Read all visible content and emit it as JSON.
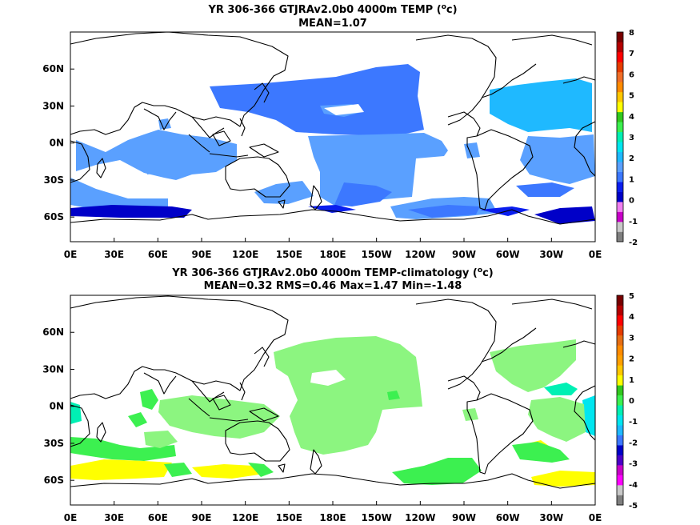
{
  "chart_data": [
    {
      "type": "heatmap",
      "title": "YR 306-366 GTJRAv2.0b0 4000m TEMP (",
      "title_unit_sup": "o",
      "title_unit_tail": "c)",
      "subtitle": "MEAN=1.07",
      "xticks": [
        "0E",
        "30E",
        "60E",
        "90E",
        "120E",
        "150E",
        "180E",
        "150W",
        "120W",
        "90W",
        "60W",
        "30W",
        "0E"
      ],
      "xtick_lon": [
        0,
        30,
        60,
        90,
        120,
        150,
        180,
        210,
        240,
        270,
        300,
        330,
        360
      ],
      "yticks": [
        "60N",
        "30N",
        "0N",
        "30S",
        "60S"
      ],
      "ytick_lat": [
        60,
        30,
        0,
        -30,
        -60
      ],
      "xlim": [
        0,
        360
      ],
      "ylim": [
        -80,
        90
      ],
      "colorbar": {
        "levels": [
          "-2",
          "-1",
          "0",
          "1",
          "2",
          "3",
          "4",
          "5",
          "6",
          "7",
          "8"
        ],
        "colors": [
          "#7f7f7f",
          "#c8c8c8",
          "#c800c8",
          "#f080f0",
          "#0000c8",
          "#0a1eee",
          "#3c78ff",
          "#5aa0ff",
          "#1fb9ff",
          "#00e6f0",
          "#00f0b4",
          "#3cf050",
          "#32c81e",
          "#ffff00",
          "#ffc800",
          "#ff8c00",
          "#f06e28",
          "#e63c00",
          "#ff0000",
          "#b40000",
          "#780000"
        ]
      }
    },
    {
      "type": "heatmap",
      "title": "YR 306-366 GTJRAv2.0b0 4000m TEMP-climatology (",
      "title_unit_sup": "o",
      "title_unit_tail": "c)",
      "subtitle": "MEAN=0.32   RMS=0.46   Max=1.47   Min=-1.48",
      "xticks": [
        "0E",
        "30E",
        "60E",
        "90E",
        "120E",
        "150E",
        "180E",
        "150W",
        "120W",
        "90W",
        "60W",
        "30W",
        "0E"
      ],
      "xtick_lon": [
        0,
        30,
        60,
        90,
        120,
        150,
        180,
        210,
        240,
        270,
        300,
        330,
        360
      ],
      "yticks": [
        "60N",
        "30N",
        "0N",
        "30S",
        "60S"
      ],
      "ytick_lat": [
        60,
        30,
        0,
        -30,
        -60
      ],
      "xlim": [
        0,
        360
      ],
      "ylim": [
        -80,
        90
      ],
      "colorbar": {
        "levels": [
          "-5",
          "-4",
          "-3",
          "-2",
          "-1",
          "0",
          "1",
          "2",
          "3",
          "4",
          "5"
        ],
        "colors": [
          "#7f7f7f",
          "#c8c8c8",
          "#ff00ff",
          "#c800c8",
          "#4b00c8",
          "#0000c8",
          "#3c78ff",
          "#1fb9ff",
          "#00e6f0",
          "#00f0b4",
          "#3cf050",
          "#32c81e",
          "#ffff00",
          "#ffc800",
          "#ffa000",
          "#ff8c00",
          "#e66e14",
          "#e63c00",
          "#ff0000",
          "#b40000",
          "#780000"
        ]
      }
    }
  ]
}
